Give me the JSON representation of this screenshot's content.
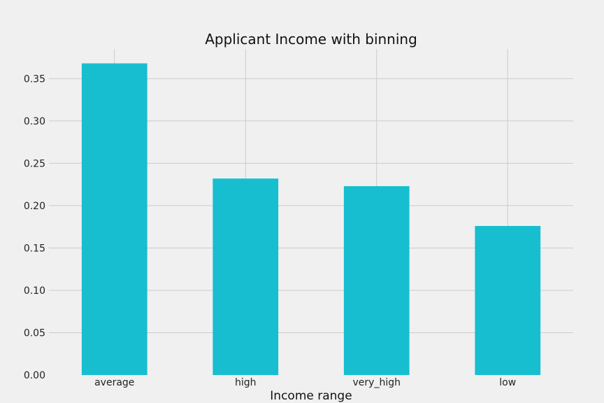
{
  "chart_data": {
    "type": "bar",
    "title": "Applicant Income with binning",
    "xlabel": "Income range",
    "ylabel": "",
    "categories": [
      "average",
      "high",
      "very_high",
      "low"
    ],
    "values": [
      0.368,
      0.232,
      0.223,
      0.176
    ],
    "ylim": [
      0,
      0.385
    ],
    "yticks": [
      0.0,
      0.05,
      0.1,
      0.15,
      0.2,
      0.25,
      0.3,
      0.35
    ],
    "ytick_labels": [
      "0.00",
      "0.05",
      "0.10",
      "0.15",
      "0.20",
      "0.25",
      "0.30",
      "0.35"
    ],
    "grid": true,
    "bar_color": "#17becf",
    "background_color": "#f0f0f0"
  }
}
